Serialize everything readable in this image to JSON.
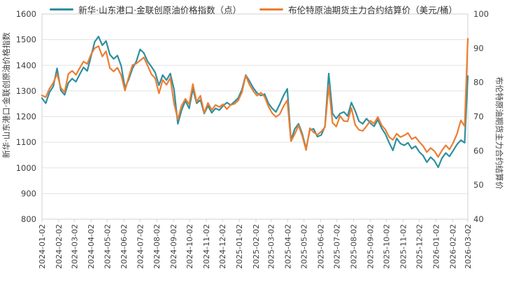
{
  "chart_data": {
    "type": "line",
    "title": "",
    "grid": "horizontal",
    "legend_position": "top",
    "x": [
      "2024-01-02",
      "2024-01-09",
      "2024-01-16",
      "2024-01-23",
      "2024-01-30",
      "2024-02-06",
      "2024-02-13",
      "2024-02-20",
      "2024-02-27",
      "2024-03-05",
      "2024-03-12",
      "2024-03-19",
      "2024-03-26",
      "2024-04-02",
      "2024-04-09",
      "2024-04-16",
      "2024-04-23",
      "2024-04-30",
      "2024-05-07",
      "2024-05-14",
      "2024-05-21",
      "2024-05-28",
      "2024-06-04",
      "2024-06-11",
      "2024-06-18",
      "2024-06-25",
      "2024-07-02",
      "2024-07-09",
      "2024-07-16",
      "2024-07-23",
      "2024-07-30",
      "2024-08-06",
      "2024-08-13",
      "2024-08-20",
      "2024-08-27",
      "2024-09-03",
      "2024-09-10",
      "2024-09-17",
      "2024-09-24",
      "2024-10-01",
      "2024-10-08",
      "2024-10-15",
      "2024-10-22",
      "2024-10-29",
      "2024-11-05",
      "2024-11-12",
      "2024-11-19",
      "2024-11-26",
      "2024-12-03",
      "2024-12-10",
      "2024-12-17",
      "2024-12-24",
      "2024-12-31",
      "2025-01-07",
      "2025-01-14",
      "2025-01-21",
      "2025-01-28",
      "2025-02-04",
      "2025-02-11",
      "2025-02-18",
      "2025-02-25",
      "2025-03-04",
      "2025-03-11",
      "2025-03-18",
      "2025-03-25",
      "2025-04-01",
      "2025-04-08",
      "2025-04-15",
      "2025-04-22",
      "2025-04-29",
      "2025-05-06",
      "2025-05-13",
      "2025-05-20",
      "2025-05-27",
      "2025-06-03",
      "2025-06-10",
      "2025-06-17",
      "2025-06-24",
      "2025-07-01",
      "2025-07-08",
      "2025-07-15",
      "2025-07-22",
      "2025-07-29",
      "2025-08-05",
      "2025-08-12",
      "2025-08-19",
      "2025-08-26",
      "2025-09-02",
      "2025-09-09",
      "2025-09-16",
      "2025-09-23",
      "2025-09-30",
      "2025-10-07",
      "2025-10-14",
      "2025-10-21",
      "2025-10-28",
      "2025-11-04",
      "2025-11-11",
      "2025-11-18",
      "2025-11-25",
      "2025-12-02",
      "2025-12-09",
      "2025-12-16",
      "2025-12-23",
      "2025-12-30",
      "2026-01-06",
      "2026-01-13",
      "2026-01-20",
      "2026-01-27",
      "2026-02-03",
      "2026-02-10",
      "2026-02-17",
      "2026-02-24",
      "2026-03-02"
    ],
    "series": [
      {
        "name": "新华·山东港口·金联创原油价格指数（点）",
        "color": "#2e8f9e",
        "axis": "left",
        "values": [
          1272,
          1252,
          1295,
          1318,
          1388,
          1302,
          1285,
          1332,
          1348,
          1336,
          1365,
          1392,
          1378,
          1435,
          1492,
          1512,
          1478,
          1495,
          1442,
          1425,
          1438,
          1398,
          1312,
          1345,
          1388,
          1415,
          1462,
          1448,
          1415,
          1395,
          1372,
          1322,
          1362,
          1342,
          1368,
          1305,
          1172,
          1225,
          1262,
          1232,
          1308,
          1252,
          1265,
          1212,
          1242,
          1215,
          1232,
          1225,
          1242,
          1255,
          1245,
          1258,
          1272,
          1305,
          1362,
          1338,
          1312,
          1292,
          1282,
          1288,
          1252,
          1232,
          1218,
          1248,
          1282,
          1308,
          1108,
          1152,
          1172,
          1132,
          1075,
          1148,
          1152,
          1122,
          1128,
          1162,
          1368,
          1212,
          1192,
          1212,
          1218,
          1202,
          1255,
          1222,
          1182,
          1172,
          1192,
          1175,
          1162,
          1188,
          1155,
          1132,
          1098,
          1068,
          1115,
          1095,
          1088,
          1098,
          1075,
          1085,
          1062,
          1048,
          1022,
          1042,
          1028,
          1002,
          1038,
          1058,
          1045,
          1068,
          1092,
          1108,
          1098,
          1358
        ]
      },
      {
        "name": "布伦特原油期货主力合约结算价（美元/桶）",
        "color": "#ed7d31",
        "axis": "right",
        "values": [
          76.2,
          75.7,
          78.2,
          79.9,
          82.5,
          78.4,
          77.2,
          82.5,
          83.4,
          82.2,
          84.2,
          86.1,
          85.4,
          88.2,
          90.0,
          90.6,
          87.6,
          89.1,
          84.2,
          83.2,
          84.3,
          82.1,
          77.6,
          81.6,
          85.1,
          85.5,
          86.4,
          87.3,
          84.9,
          82.4,
          81.2,
          76.8,
          80.7,
          79.3,
          81.3,
          73.8,
          69.2,
          73.2,
          75.2,
          73.6,
          79.5,
          74.3,
          76.1,
          71.1,
          74.0,
          71.9,
          73.4,
          72.8,
          73.6,
          72.2,
          73.4,
          73.7,
          74.7,
          77.1,
          82.0,
          79.3,
          77.5,
          76.1,
          77.0,
          75.8,
          73.0,
          71.0,
          69.9,
          70.7,
          73.0,
          74.8,
          62.8,
          64.9,
          67.4,
          64.3,
          60.2,
          66.6,
          65.4,
          64.7,
          65.6,
          66.9,
          79.0,
          68.2,
          67.1,
          70.2,
          68.7,
          68.6,
          72.5,
          67.6,
          66.1,
          65.8,
          67.2,
          68.8,
          68.0,
          69.9,
          67.5,
          66.2,
          64.0,
          63.2,
          65.0,
          64.0,
          64.5,
          65.2,
          63.4,
          64.0,
          62.6,
          61.4,
          59.6,
          60.8,
          59.9,
          58.2,
          60.1,
          61.6,
          60.4,
          62.4,
          65.0,
          68.9,
          67.2,
          92.8
        ]
      }
    ],
    "left_axis": {
      "title": "新华·山东港口·金联创原油价格指数",
      "min": 800,
      "max": 1600,
      "ticks": [
        800,
        900,
        1000,
        1100,
        1200,
        1300,
        1400,
        1500,
        1600
      ]
    },
    "right_axis": {
      "title": "布伦特原油期货主力合约结算价",
      "min": 40,
      "max": 100,
      "ticks": [
        40,
        50,
        60,
        70,
        80,
        90,
        100
      ]
    },
    "x_axis": {
      "tick_labels": [
        "2024-01-02",
        "2024-02-02",
        "2024-03-02",
        "2024-04-02",
        "2024-05-02",
        "2024-06-02",
        "2024-07-02",
        "2024-08-02",
        "2024-09-02",
        "2024-10-02",
        "2024-11-02",
        "2024-12-02",
        "2025-01-02",
        "2025-02-02",
        "2025-03-02",
        "2025-04-02",
        "2025-05-02",
        "2025-06-02",
        "2025-07-02",
        "2025-08-02",
        "2025-09-02",
        "2025-10-02",
        "2025-11-02",
        "2025-12-02",
        "2026-01-02",
        "2026-02-02",
        "2026-03-02"
      ]
    }
  },
  "colors": {
    "grid": "#e3e3e3",
    "plot_border": "#d2d2d2",
    "tick_text": "#3f3f3f",
    "axis_title_text": "#3f3f3f",
    "background": "#ffffff"
  }
}
